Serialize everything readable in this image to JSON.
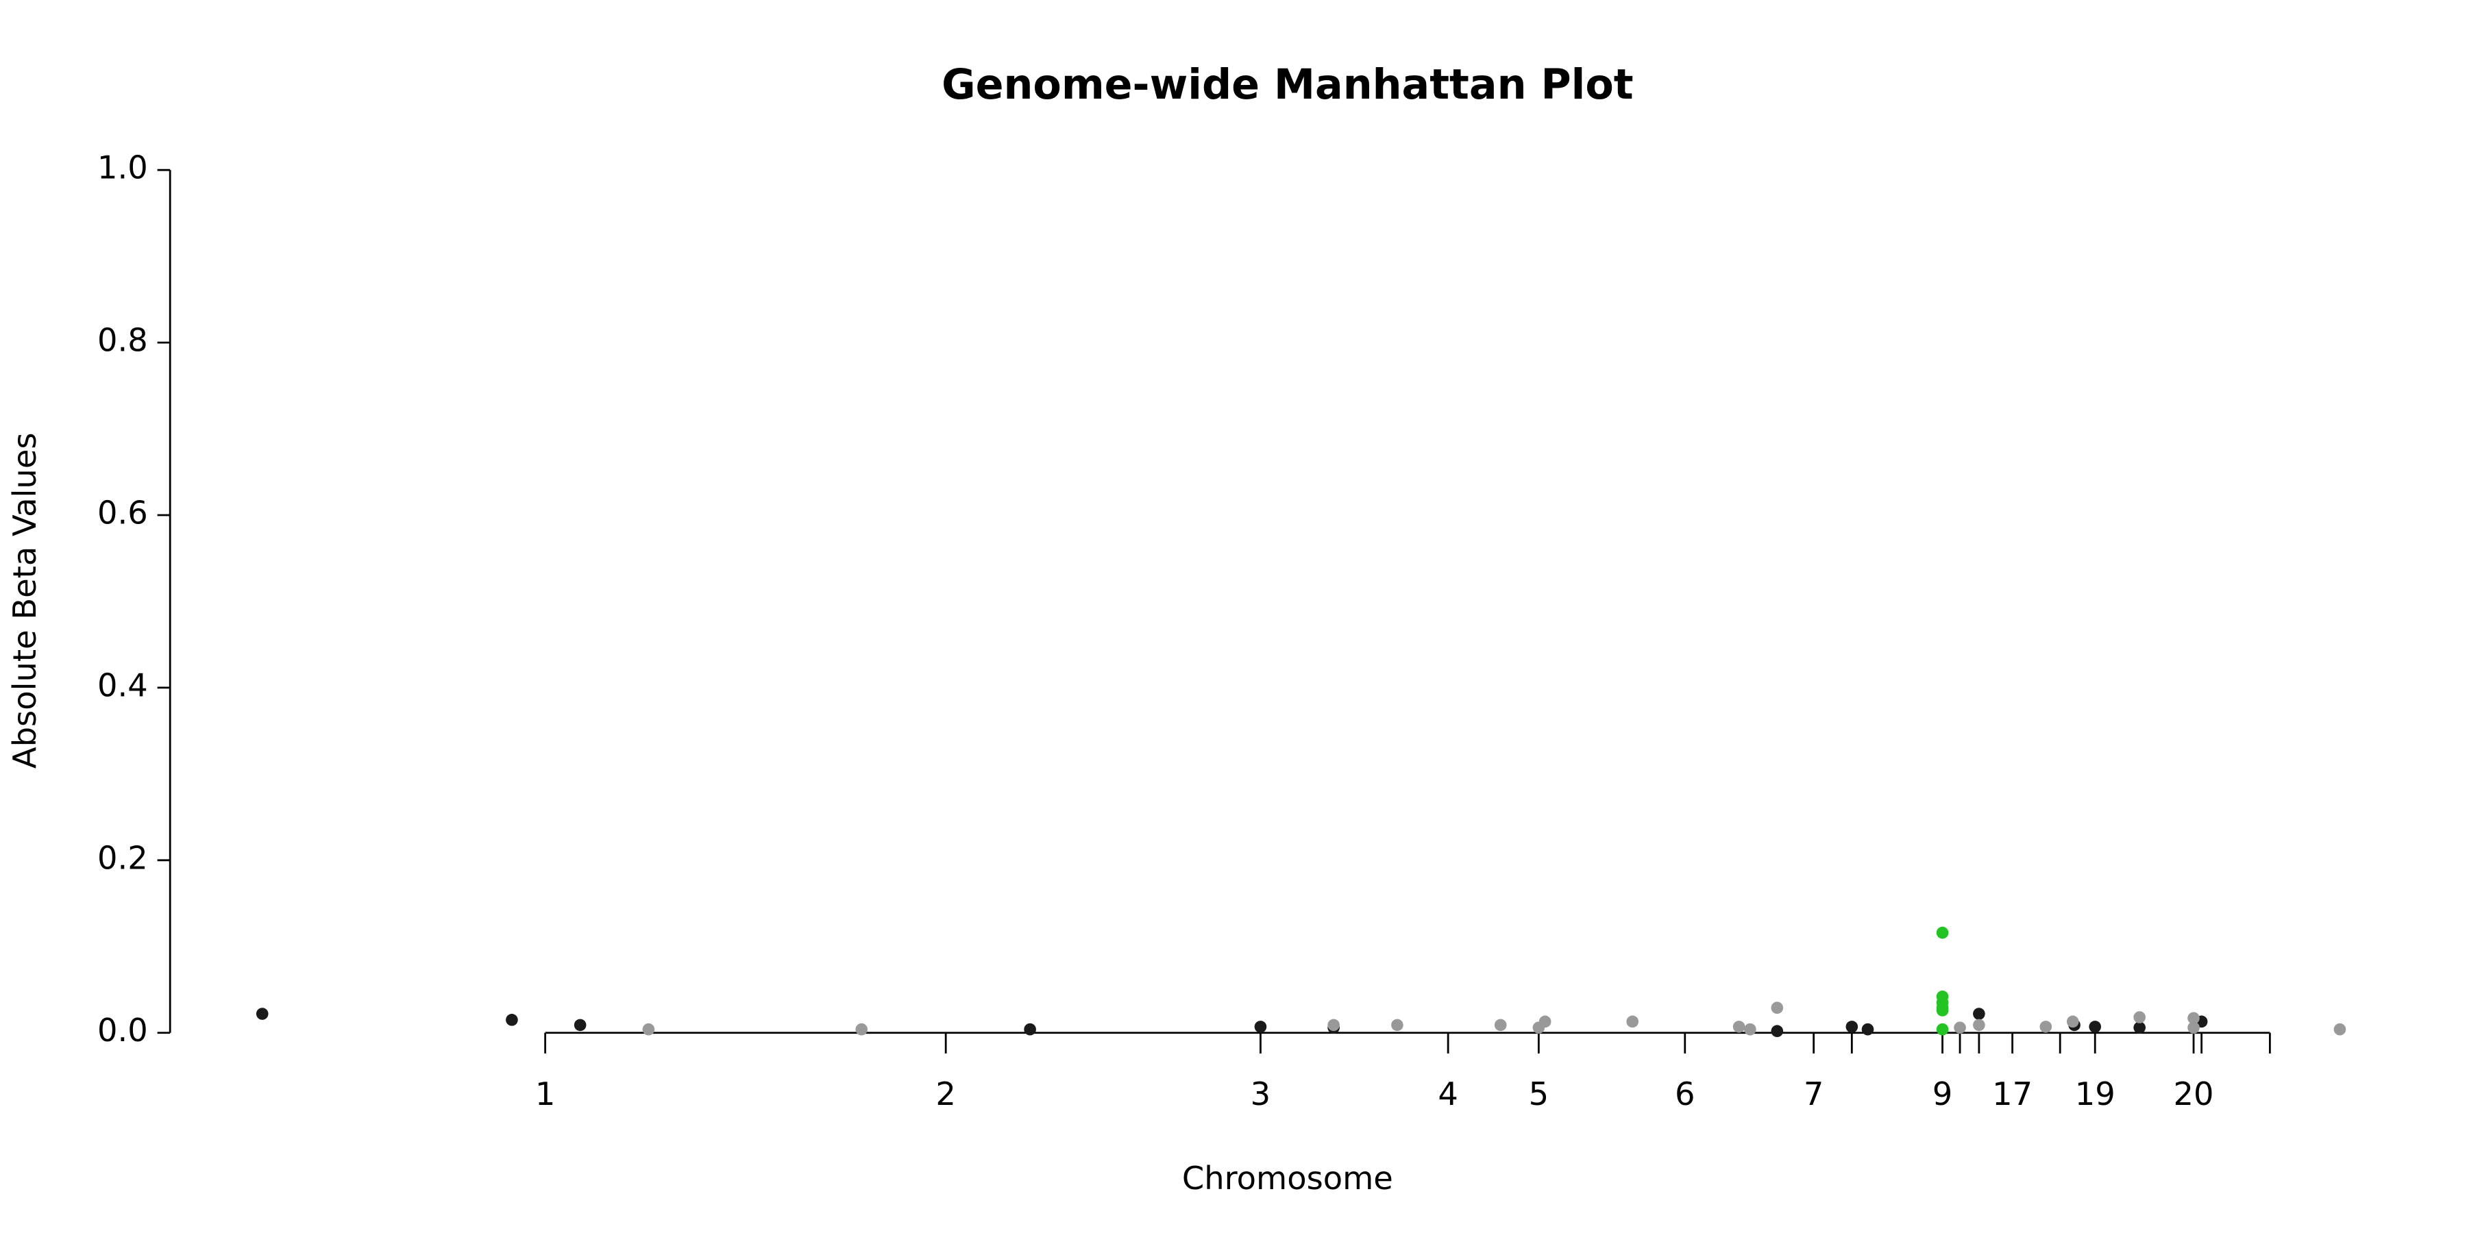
{
  "chart_data": {
    "type": "scatter",
    "title": "Genome-wide Manhattan Plot",
    "x_label": "Chromosome",
    "y_label": "Absolute Beta Values",
    "xlim": [
      150,
      1490
    ],
    "ylim": [
      0,
      1
    ],
    "xticks": [
      {
        "value": 343,
        "label": "1"
      },
      {
        "value": 595,
        "label": "2"
      },
      {
        "value": 793,
        "label": "3"
      },
      {
        "value": 911,
        "label": "4"
      },
      {
        "value": 968,
        "label": "5"
      },
      {
        "value": 1060,
        "label": "6"
      },
      {
        "value": 1141,
        "label": "7"
      },
      {
        "value": 1165,
        "label": null
      },
      {
        "value": 1222,
        "label": "9"
      },
      {
        "value": 1233,
        "label": null
      },
      {
        "value": 1245,
        "label": null
      },
      {
        "value": 1266,
        "label": "17"
      },
      {
        "value": 1296,
        "label": null
      },
      {
        "value": 1318,
        "label": "19"
      },
      {
        "value": 1380,
        "label": "20"
      },
      {
        "value": 1385,
        "label": null
      },
      {
        "value": 1428,
        "label": null
      }
    ],
    "yticks": [
      {
        "value": 0,
        "label": "0.0"
      },
      {
        "value": 0.2,
        "label": "0.2"
      },
      {
        "value": 0.4,
        "label": "0.4"
      },
      {
        "value": 0.6,
        "label": "0.6"
      },
      {
        "value": 0.8,
        "label": "0.8"
      },
      {
        "value": 1,
        "label": "1.0"
      }
    ],
    "series": [
      {
        "color": "#1a1a1a",
        "x": [
          165,
          322,
          365,
          648,
          793,
          839,
          1118,
          1165,
          1175,
          1245,
          1305,
          1318,
          1346,
          1385
        ],
        "values": [
          0.022,
          0.015,
          0.009,
          0.004,
          0.007,
          0.006,
          0.002,
          0.007,
          0.004,
          0.022,
          0.009,
          0.007,
          0.006,
          0.013
        ]
      },
      {
        "color": "#999999",
        "x": [
          408,
          542,
          839,
          879,
          944,
          968,
          972,
          1027,
          1094,
          1101,
          1118,
          1233,
          1245,
          1287,
          1304,
          1346,
          1380,
          1380,
          1472
        ],
        "values": [
          0.004,
          0.004,
          0.009,
          0.009,
          0.009,
          0.006,
          0.013,
          0.013,
          0.007,
          0.004,
          0.029,
          0.006,
          0.009,
          0.007,
          0.013,
          0.018,
          0.017,
          0.006,
          0.004
        ]
      },
      {
        "color": "#22c322",
        "x": [
          1222,
          1222,
          1222,
          1222,
          1222,
          1222
        ],
        "values": [
          0.116,
          0.042,
          0.035,
          0.029,
          0.026,
          0.004
        ]
      }
    ]
  }
}
